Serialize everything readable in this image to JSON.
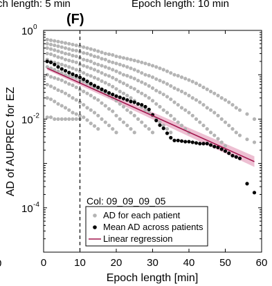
{
  "header": {
    "left_text": "ch length: 5 min",
    "right_text": "Epoch length: 10 min",
    "left_edge_tick": "0",
    "panel_label": "(F)"
  },
  "chart_data": {
    "type": "scatter",
    "title": "",
    "xlabel": "Epoch length [min]",
    "ylabel": "AD of AUPREC for EZ",
    "xlim": [
      0,
      60
    ],
    "ylim": [
      1e-05,
      1
    ],
    "yscale": "log",
    "xticks": [
      0,
      10,
      20,
      30,
      40,
      50,
      60
    ],
    "xtick_labels": [
      "0",
      "10",
      "20",
      "30",
      "40",
      "50",
      "60"
    ],
    "yticks": [
      0.0001,
      0.01,
      1
    ],
    "ytick_labels": [
      "10",
      "10",
      "10"
    ],
    "ytick_exponents": [
      "-4",
      "-2",
      "0"
    ],
    "grid": false,
    "vertical_line": {
      "x": 10,
      "style": "dashed"
    },
    "annotation": "Col: 09_09_09_05",
    "legend": {
      "placement": "bottom-center",
      "entries": [
        {
          "label": "AD for each patient",
          "marker": "gray-dot"
        },
        {
          "label": "Mean AD across patients",
          "marker": "black-dot"
        },
        {
          "label": "Linear regression",
          "marker": "crimson-line"
        }
      ]
    },
    "colors": {
      "patient_points": "#b4b4b4",
      "mean_points": "#000000",
      "regression_line": "#a0144b",
      "confidence_band": "#e7aac3"
    },
    "series": [
      {
        "name": "Mean AD across patients",
        "x": [
          1,
          2,
          3,
          4,
          5,
          6,
          7,
          8,
          9,
          10,
          11,
          12,
          13,
          14,
          15,
          16,
          17,
          18,
          19,
          20,
          21,
          22,
          23,
          24,
          25,
          26,
          27,
          28,
          29,
          30,
          31,
          32,
          33,
          34,
          35,
          36,
          37,
          38,
          39,
          40,
          41,
          42,
          43,
          44,
          45,
          46,
          47,
          48,
          49,
          50,
          51,
          52,
          53,
          54,
          56,
          58
        ],
        "y": [
          0.2,
          0.19,
          0.17,
          0.15,
          0.135,
          0.123,
          0.112,
          0.103,
          0.095,
          0.087,
          0.079,
          0.071,
          0.063,
          0.057,
          0.052,
          0.047,
          0.043,
          0.039,
          0.036,
          0.033,
          0.031,
          0.029,
          0.027,
          0.025,
          0.024,
          0.022,
          0.021,
          0.019,
          0.0165,
          0.0125,
          0.0093,
          0.0073,
          0.0062,
          0.0048,
          0.0038,
          0.0033,
          0.0033,
          0.0032,
          0.0031,
          0.0031,
          0.003,
          0.0029,
          0.0028,
          0.0028,
          0.0028,
          0.0026,
          0.0024,
          0.0023,
          0.0021,
          0.0019,
          0.0017,
          0.0015,
          0.0014,
          0.0013,
          0.00035,
          0.00022
        ]
      },
      {
        "name": "Linear regression",
        "x": [
          1,
          58
        ],
        "y": [
          0.14,
          0.0011
        ],
        "ci_half_width_log10_start": 0.04,
        "ci_half_width_log10_end": 0.12
      },
      {
        "name": "AD for each patient",
        "x": [
          1,
          1,
          1,
          1,
          1,
          1,
          1,
          1,
          1,
          1,
          2,
          2,
          2,
          2,
          2,
          2,
          2,
          2,
          2,
          2,
          3,
          3,
          3,
          3,
          3,
          3,
          3,
          3,
          3,
          3,
          4,
          4,
          4,
          4,
          4,
          4,
          4,
          4,
          4,
          4,
          5,
          5,
          5,
          5,
          5,
          5,
          5,
          5,
          5,
          5,
          6,
          6,
          6,
          6,
          6,
          6,
          6,
          6,
          6,
          6,
          7,
          7,
          7,
          7,
          7,
          7,
          7,
          7,
          7,
          7,
          8,
          8,
          8,
          8,
          8,
          8,
          8,
          8,
          8,
          8,
          9,
          9,
          9,
          9,
          9,
          9,
          9,
          9,
          9,
          9,
          10,
          10,
          10,
          10,
          10,
          10,
          10,
          10,
          10,
          10,
          11,
          11,
          11,
          11,
          11,
          11,
          11,
          11,
          11,
          12,
          12,
          12,
          12,
          12,
          12,
          12,
          12,
          12,
          13,
          13,
          13,
          13,
          13,
          13,
          13,
          13,
          13,
          14,
          14,
          14,
          14,
          14,
          14,
          14,
          14,
          14,
          15,
          15,
          15,
          15,
          15,
          15,
          15,
          15,
          15,
          16,
          16,
          16,
          16,
          16,
          16,
          16,
          16,
          17,
          17,
          17,
          17,
          17,
          17,
          17,
          17,
          18,
          18,
          18,
          18,
          18,
          18,
          18,
          18,
          19,
          19,
          19,
          19,
          19,
          19,
          19,
          19,
          20,
          20,
          20,
          20,
          20,
          20,
          20,
          20,
          21,
          21,
          21,
          21,
          21,
          21,
          21,
          22,
          22,
          22,
          22,
          22,
          22,
          22,
          23,
          23,
          23,
          23,
          23,
          23,
          23,
          24,
          24,
          24,
          24,
          24,
          24,
          24,
          25,
          25,
          25,
          25,
          25,
          25,
          25,
          26,
          26,
          26,
          26,
          26,
          26,
          27,
          27,
          27,
          27,
          27,
          27,
          28,
          28,
          28,
          28,
          28,
          28,
          29,
          29,
          29,
          29,
          29,
          29,
          30,
          30,
          30,
          30,
          30,
          30,
          31,
          31,
          31,
          31,
          31,
          32,
          32,
          32,
          32,
          32,
          33,
          33,
          33,
          33,
          33,
          34,
          34,
          34,
          34,
          34,
          35,
          35,
          35,
          35,
          35,
          36,
          36,
          36,
          36,
          37,
          37,
          37,
          37,
          38,
          38,
          38,
          38,
          39,
          39,
          39,
          39,
          40,
          40,
          40,
          40,
          41,
          41,
          41,
          42,
          42,
          42,
          43,
          43,
          43,
          44,
          44,
          44,
          45,
          45,
          45,
          46,
          46,
          46,
          47,
          47,
          47,
          48,
          48,
          48,
          49,
          49,
          49,
          50,
          50,
          50,
          51,
          51,
          52,
          52,
          53,
          53,
          54,
          54,
          56,
          56,
          58,
          58
        ],
        "y": [
          0.62,
          0.5,
          0.4,
          0.3,
          0.22,
          0.15,
          0.1,
          0.06,
          0.03,
          0.011,
          0.6,
          0.48,
          0.38,
          0.29,
          0.2,
          0.14,
          0.09,
          0.055,
          0.028,
          0.011,
          0.58,
          0.46,
          0.36,
          0.27,
          0.19,
          0.13,
          0.085,
          0.05,
          0.025,
          0.01,
          0.56,
          0.44,
          0.34,
          0.25,
          0.18,
          0.12,
          0.08,
          0.045,
          0.022,
          0.01,
          0.54,
          0.42,
          0.32,
          0.24,
          0.17,
          0.11,
          0.075,
          0.042,
          0.02,
          0.01,
          0.52,
          0.4,
          0.3,
          0.22,
          0.16,
          0.1,
          0.068,
          0.038,
          0.018,
          0.01,
          0.5,
          0.38,
          0.29,
          0.21,
          0.15,
          0.095,
          0.062,
          0.034,
          0.016,
          0.01,
          0.48,
          0.36,
          0.27,
          0.2,
          0.14,
          0.09,
          0.058,
          0.03,
          0.014,
          0.01,
          0.46,
          0.35,
          0.26,
          0.19,
          0.13,
          0.085,
          0.052,
          0.027,
          0.013,
          0.01,
          0.44,
          0.33,
          0.24,
          0.17,
          0.12,
          0.075,
          0.046,
          0.024,
          0.012,
          0.01,
          0.42,
          0.31,
          0.22,
          0.16,
          0.11,
          0.07,
          0.042,
          0.021,
          0.011,
          0.4,
          0.3,
          0.21,
          0.15,
          0.1,
          0.064,
          0.038,
          0.018,
          0.0095,
          0.38,
          0.28,
          0.2,
          0.14,
          0.094,
          0.058,
          0.034,
          0.016,
          0.008,
          0.36,
          0.26,
          0.18,
          0.13,
          0.086,
          0.052,
          0.03,
          0.014,
          0.007,
          0.34,
          0.25,
          0.17,
          0.12,
          0.08,
          0.048,
          0.027,
          0.012,
          0.006,
          0.32,
          0.23,
          0.16,
          0.11,
          0.072,
          0.042,
          0.023,
          0.01,
          0.3,
          0.22,
          0.15,
          0.1,
          0.066,
          0.038,
          0.02,
          0.0085,
          0.29,
          0.2,
          0.14,
          0.094,
          0.06,
          0.034,
          0.017,
          0.0072,
          0.28,
          0.19,
          0.13,
          0.086,
          0.054,
          0.03,
          0.015,
          0.006,
          0.26,
          0.18,
          0.12,
          0.078,
          0.048,
          0.026,
          0.012,
          0.005,
          0.25,
          0.17,
          0.11,
          0.07,
          0.042,
          0.022,
          0.01,
          0.24,
          0.16,
          0.1,
          0.064,
          0.038,
          0.019,
          0.0085,
          0.23,
          0.15,
          0.095,
          0.058,
          0.034,
          0.016,
          0.0072,
          0.22,
          0.14,
          0.088,
          0.052,
          0.03,
          0.014,
          0.006,
          0.21,
          0.13,
          0.082,
          0.048,
          0.026,
          0.012,
          0.005,
          0.2,
          0.12,
          0.074,
          0.042,
          0.022,
          0.01,
          0.19,
          0.11,
          0.068,
          0.038,
          0.019,
          0.0085,
          0.18,
          0.1,
          0.062,
          0.034,
          0.016,
          0.007,
          0.17,
          0.095,
          0.056,
          0.03,
          0.014,
          0.006,
          0.16,
          0.088,
          0.05,
          0.026,
          0.012,
          0.005,
          0.15,
          0.08,
          0.044,
          0.022,
          0.01,
          0.14,
          0.074,
          0.04,
          0.019,
          0.0085,
          0.13,
          0.068,
          0.036,
          0.016,
          0.0072,
          0.12,
          0.062,
          0.032,
          0.014,
          0.006,
          0.11,
          0.056,
          0.028,
          0.012,
          0.005,
          0.1,
          0.05,
          0.024,
          0.01,
          0.095,
          0.046,
          0.021,
          0.0085,
          0.088,
          0.042,
          0.018,
          0.0072,
          0.082,
          0.038,
          0.016,
          0.006,
          0.076,
          0.034,
          0.014,
          0.005,
          0.07,
          0.03,
          0.012,
          0.064,
          0.027,
          0.01,
          0.058,
          0.024,
          0.0085,
          0.052,
          0.021,
          0.0072,
          0.047,
          0.018,
          0.006,
          0.042,
          0.016,
          0.005,
          0.038,
          0.014,
          0.0043,
          0.034,
          0.012,
          0.0036,
          0.03,
          0.01,
          0.003,
          0.027,
          0.0085,
          0.0025,
          0.024,
          0.0072,
          0.021,
          0.006,
          0.018,
          0.005,
          0.016,
          0.0043,
          0.013,
          0.0035,
          0.01,
          0.003
        ]
      }
    ]
  }
}
